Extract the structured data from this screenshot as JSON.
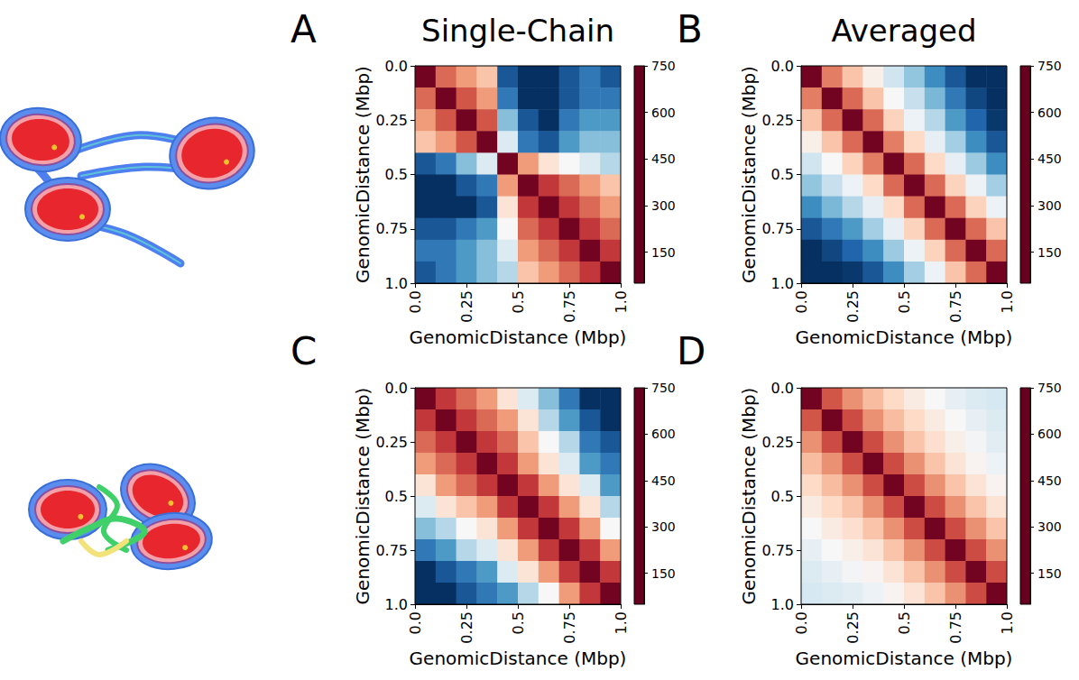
{
  "chart_data": [
    {
      "type": "heatmap",
      "panel": "A",
      "title": "Single-Chain",
      "x_label": "GenomicDistance (Mbp)",
      "y_label": "GenomicDistance (Mbp)",
      "xlim": [
        0,
        1
      ],
      "ylim": [
        0,
        1
      ],
      "xticks": [
        {
          "value": 0,
          "label": "0.0"
        },
        0.25,
        0.5,
        0.75,
        {
          "value": 1,
          "label": "1.0"
        }
      ],
      "yticks": [
        {
          "value": 0,
          "label": "0.0"
        },
        0.25,
        0.5,
        0.75,
        {
          "value": 1,
          "label": "1.0"
        }
      ],
      "bins": [
        0,
        0.1,
        0.2,
        0.3,
        0.4,
        0.5,
        0.6,
        0.7,
        0.8,
        0.9,
        1.0
      ],
      "z": [
        [
          60,
          200,
          250,
          300,
          700,
          750,
          750,
          700,
          650,
          700
        ],
        [
          200,
          60,
          180,
          250,
          650,
          750,
          750,
          700,
          650,
          650
        ],
        [
          250,
          180,
          60,
          180,
          550,
          700,
          750,
          650,
          600,
          600
        ],
        [
          300,
          250,
          180,
          60,
          450,
          650,
          700,
          600,
          550,
          550
        ],
        [
          700,
          650,
          550,
          450,
          60,
          250,
          350,
          400,
          450,
          500
        ],
        [
          750,
          750,
          700,
          650,
          250,
          60,
          150,
          200,
          250,
          300
        ],
        [
          750,
          750,
          750,
          700,
          350,
          150,
          60,
          150,
          200,
          250
        ],
        [
          700,
          700,
          650,
          600,
          400,
          200,
          150,
          60,
          150,
          200
        ],
        [
          650,
          650,
          600,
          550,
          450,
          250,
          200,
          150,
          60,
          150
        ],
        [
          700,
          650,
          600,
          550,
          500,
          300,
          250,
          200,
          150,
          60
        ]
      ],
      "colorbar": {
        "range": [
          50,
          750
        ],
        "ticks": [
          150,
          300,
          450,
          600,
          750
        ]
      }
    },
    {
      "type": "heatmap",
      "panel": "B",
      "title": "Averaged",
      "x_label": "GenomicDistance (Mbp)",
      "y_label": "GenomicDistance (Mbp)",
      "xlim": [
        0,
        1
      ],
      "ylim": [
        0,
        1
      ],
      "xticks": [
        {
          "value": 0,
          "label": "0.0"
        },
        0.25,
        0.5,
        0.75,
        {
          "value": 1,
          "label": "1.0"
        }
      ],
      "yticks": [
        {
          "value": 0,
          "label": "0.0"
        },
        0.25,
        0.5,
        0.75,
        {
          "value": 1,
          "label": "1.0"
        }
      ],
      "bins": [
        0,
        0.1,
        0.2,
        0.3,
        0.4,
        0.5,
        0.6,
        0.7,
        0.8,
        0.9,
        1.0
      ],
      "z": [
        [
          60,
          220,
          300,
          380,
          470,
          540,
          620,
          700,
          750,
          750
        ],
        [
          220,
          60,
          200,
          300,
          400,
          480,
          560,
          650,
          720,
          750
        ],
        [
          300,
          200,
          60,
          200,
          320,
          420,
          500,
          600,
          680,
          740
        ],
        [
          380,
          300,
          200,
          60,
          220,
          330,
          430,
          520,
          620,
          700
        ],
        [
          470,
          400,
          320,
          220,
          60,
          200,
          330,
          430,
          530,
          620
        ],
        [
          540,
          480,
          420,
          330,
          200,
          60,
          200,
          320,
          420,
          520
        ],
        [
          620,
          560,
          500,
          430,
          330,
          200,
          60,
          200,
          320,
          420
        ],
        [
          700,
          650,
          600,
          520,
          430,
          320,
          200,
          60,
          200,
          300
        ],
        [
          750,
          720,
          680,
          620,
          530,
          420,
          320,
          200,
          60,
          200
        ],
        [
          750,
          750,
          740,
          700,
          620,
          520,
          420,
          300,
          200,
          60
        ]
      ],
      "colorbar": {
        "range": [
          50,
          750
        ],
        "ticks": [
          150,
          300,
          450,
          600,
          750
        ]
      }
    },
    {
      "type": "heatmap",
      "panel": "C",
      "x_label": "GenomicDistance (Mbp)",
      "y_label": "GenomicDistance (Mbp)",
      "xlim": [
        0,
        1
      ],
      "ylim": [
        0,
        1
      ],
      "xticks": [
        {
          "value": 0,
          "label": "0.0"
        },
        0.25,
        0.5,
        0.75,
        {
          "value": 1,
          "label": "1.0"
        }
      ],
      "yticks": [
        {
          "value": 0,
          "label": "0.0"
        },
        0.25,
        0.5,
        0.75,
        {
          "value": 1,
          "label": "1.0"
        }
      ],
      "bins": [
        0,
        0.1,
        0.2,
        0.3,
        0.4,
        0.5,
        0.6,
        0.7,
        0.8,
        0.9,
        1.0
      ],
      "z": [
        [
          60,
          150,
          200,
          250,
          350,
          450,
          550,
          650,
          750,
          750
        ],
        [
          150,
          60,
          150,
          200,
          250,
          350,
          500,
          600,
          700,
          750
        ],
        [
          200,
          150,
          60,
          150,
          200,
          300,
          400,
          500,
          650,
          700
        ],
        [
          250,
          200,
          150,
          60,
          150,
          250,
          350,
          450,
          600,
          650
        ],
        [
          350,
          250,
          200,
          150,
          60,
          150,
          250,
          350,
          450,
          600
        ],
        [
          450,
          350,
          300,
          250,
          150,
          60,
          150,
          250,
          350,
          500
        ],
        [
          550,
          500,
          400,
          350,
          250,
          150,
          60,
          150,
          250,
          400
        ],
        [
          650,
          600,
          500,
          450,
          350,
          250,
          150,
          60,
          150,
          250
        ],
        [
          750,
          700,
          650,
          600,
          450,
          350,
          250,
          150,
          60,
          150
        ],
        [
          750,
          750,
          700,
          650,
          600,
          500,
          400,
          250,
          150,
          60
        ]
      ],
      "colorbar": {
        "range": [
          50,
          750
        ],
        "ticks": [
          150,
          300,
          450,
          600,
          750
        ]
      }
    },
    {
      "type": "heatmap",
      "panel": "D",
      "x_label": "GenomicDistance (Mbp)",
      "y_label": "GenomicDistance (Mbp)",
      "xlim": [
        0,
        1
      ],
      "ylim": [
        0,
        1
      ],
      "xticks": [
        {
          "value": 0,
          "label": "0.0"
        },
        0.25,
        0.5,
        0.75,
        {
          "value": 1,
          "label": "1.0"
        }
      ],
      "yticks": [
        {
          "value": 0,
          "label": "0.0"
        },
        0.25,
        0.5,
        0.75,
        {
          "value": 1,
          "label": "1.0"
        }
      ],
      "bins": [
        0,
        0.1,
        0.2,
        0.3,
        0.4,
        0.5,
        0.6,
        0.7,
        0.8,
        0.9,
        1.0
      ],
      "z": [
        [
          60,
          180,
          240,
          290,
          330,
          370,
          400,
          430,
          450,
          460
        ],
        [
          180,
          60,
          170,
          240,
          290,
          330,
          370,
          400,
          430,
          450
        ],
        [
          240,
          170,
          60,
          170,
          240,
          300,
          340,
          380,
          410,
          440
        ],
        [
          290,
          240,
          170,
          60,
          170,
          240,
          300,
          350,
          390,
          420
        ],
        [
          330,
          290,
          240,
          170,
          60,
          170,
          240,
          300,
          350,
          390
        ],
        [
          370,
          330,
          300,
          240,
          170,
          60,
          170,
          240,
          300,
          350
        ],
        [
          400,
          370,
          340,
          300,
          240,
          170,
          60,
          170,
          240,
          300
        ],
        [
          430,
          400,
          380,
          350,
          300,
          240,
          170,
          60,
          170,
          240
        ],
        [
          450,
          430,
          410,
          390,
          350,
          300,
          240,
          170,
          60,
          170
        ],
        [
          460,
          450,
          440,
          420,
          390,
          350,
          300,
          240,
          170,
          60
        ]
      ],
      "colorbar": {
        "range": [
          50,
          750
        ],
        "ticks": [
          150,
          300,
          450,
          600,
          750
        ]
      }
    }
  ]
}
